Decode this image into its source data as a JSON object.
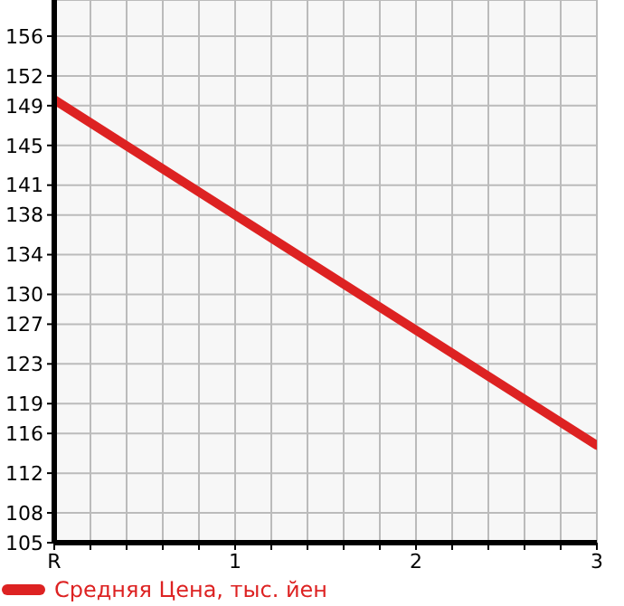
{
  "chart_data": {
    "type": "line",
    "x": [
      0,
      3
    ],
    "series": [
      {
        "name": "Средняя Цена, тыс. йен",
        "color": "#dd2222",
        "values": [
          149.6,
          114.8
        ]
      }
    ],
    "xlim": [
      0,
      3
    ],
    "xticks": [
      {
        "value": 0,
        "label": "R"
      },
      {
        "value": 0.2,
        "label": null
      },
      {
        "value": 0.4,
        "label": null
      },
      {
        "value": 0.6,
        "label": null
      },
      {
        "value": 0.8,
        "label": null
      },
      1,
      {
        "value": 1.2,
        "label": null
      },
      {
        "value": 1.4,
        "label": null
      },
      {
        "value": 1.6,
        "label": null
      },
      {
        "value": 1.8,
        "label": null
      },
      2,
      {
        "value": 2.2,
        "label": null
      },
      {
        "value": 2.4,
        "label": null
      },
      {
        "value": 2.6,
        "label": null
      },
      {
        "value": 2.8,
        "label": null
      },
      3
    ],
    "ylim": [
      105,
      159.64
    ],
    "yticks": [
      105,
      108,
      112,
      116,
      119,
      123,
      127,
      130,
      134,
      138,
      141,
      145,
      149,
      152,
      156
    ],
    "grid": true,
    "legend": "bottom",
    "marker": "none",
    "line_style": "solid"
  }
}
